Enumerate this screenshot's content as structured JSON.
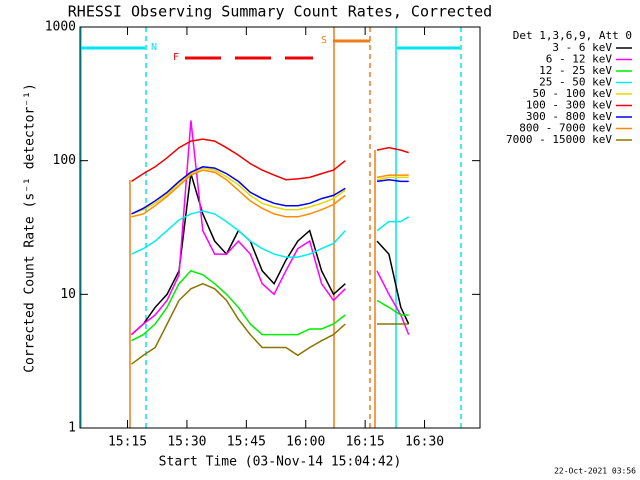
{
  "chart_data": {
    "type": "line",
    "title": "RHESSI Observing Summary Count Rates, Corrected",
    "xlabel": "Start Time (03-Nov-14 15:04:42)",
    "ylabel": "Corrected Count Rate (s⁻¹ detector⁻¹)",
    "legend_title": "Det 1,3,6,9, Att 0",
    "footer": "22-Oct-2021 03:56",
    "log_y": true,
    "ylim": [
      1,
      1000
    ],
    "yticks": [
      1,
      10,
      100,
      1000
    ],
    "xlim": [
      "15:03",
      "16:44"
    ],
    "xticks": [
      "15:15",
      "15:30",
      "15:45",
      "16:00",
      "16:15",
      "16:30"
    ],
    "annotations": [
      {
        "text": "N",
        "color": "#00e5ee"
      },
      {
        "text": "F",
        "color": "#ee0000"
      },
      {
        "text": "S",
        "color": "#ee7d1c"
      }
    ],
    "x": [
      "15:16",
      "15:19",
      "15:22",
      "15:25",
      "15:28",
      "15:31",
      "15:34",
      "15:37",
      "15:40",
      "15:43",
      "15:46",
      "15:49",
      "15:52",
      "15:55",
      "15:58",
      "16:01",
      "16:04",
      "16:07",
      "16:10",
      "16:14",
      "16:18",
      "16:21",
      "16:24",
      "16:26"
    ],
    "series": [
      {
        "name": "3 - 6 keV",
        "color": "#000000",
        "values": [
          5,
          6,
          8,
          10,
          15,
          80,
          40,
          25,
          20,
          30,
          25,
          15,
          12,
          18,
          25,
          30,
          15,
          10,
          12,
          null,
          25,
          20,
          8,
          6
        ]
      },
      {
        "name": "6 - 12 keV",
        "color": "#ff00ff",
        "values": [
          5,
          6,
          7,
          9,
          14,
          200,
          30,
          20,
          20,
          25,
          20,
          12,
          10,
          15,
          22,
          25,
          12,
          9,
          11,
          null,
          15,
          10,
          7,
          5
        ]
      },
      {
        "name": "12 - 25 keV",
        "color": "#00ee00",
        "values": [
          4.5,
          5,
          6,
          8,
          12,
          15,
          14,
          12,
          10,
          8,
          6,
          5,
          5,
          5,
          5,
          5.5,
          5.5,
          6,
          7,
          null,
          9,
          8,
          7,
          7
        ]
      },
      {
        "name": "25 - 50 keV",
        "color": "#00eeee",
        "values": [
          20,
          22,
          25,
          30,
          36,
          40,
          42,
          40,
          35,
          30,
          25,
          22,
          20,
          19,
          19,
          20,
          22,
          24,
          30,
          null,
          30,
          35,
          35,
          38
        ]
      },
      {
        "name": "50 - 100 keV",
        "color": "#e6d800",
        "values": [
          40,
          43,
          48,
          56,
          68,
          80,
          88,
          85,
          76,
          66,
          55,
          48,
          45,
          43,
          43,
          45,
          48,
          52,
          60,
          null,
          72,
          75,
          75,
          75
        ]
      },
      {
        "name": "100 - 300 keV",
        "color": "#ee0000",
        "values": [
          70,
          80,
          90,
          105,
          125,
          140,
          145,
          140,
          125,
          110,
          95,
          85,
          78,
          72,
          73,
          75,
          80,
          85,
          100,
          null,
          120,
          125,
          120,
          115
        ]
      },
      {
        "name": "300 - 800 keV",
        "color": "#0000ee",
        "values": [
          40,
          44,
          50,
          58,
          70,
          82,
          90,
          88,
          80,
          70,
          58,
          52,
          48,
          46,
          46,
          48,
          52,
          55,
          62,
          null,
          70,
          72,
          70,
          70
        ]
      },
      {
        "name": "800 - 7000 keV",
        "color": "#ff8c00",
        "values": [
          38,
          40,
          46,
          54,
          65,
          78,
          85,
          82,
          72,
          60,
          50,
          44,
          40,
          38,
          38,
          40,
          43,
          47,
          55,
          null,
          75,
          78,
          78,
          78
        ]
      },
      {
        "name": "7000 - 15000 keV",
        "color": "#8b7500",
        "values": [
          3,
          3.5,
          4,
          6,
          9,
          11,
          12,
          11,
          9,
          6.5,
          5,
          4,
          4,
          4,
          3.5,
          4,
          4.5,
          5,
          6,
          null,
          6,
          6,
          6,
          6
        ]
      }
    ]
  }
}
